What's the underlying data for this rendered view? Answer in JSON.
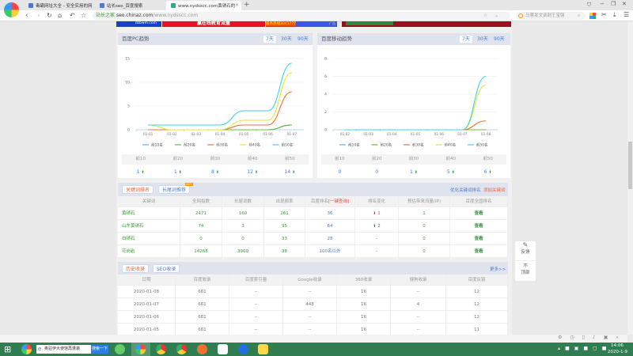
{
  "browser": {
    "tabs": [
      {
        "label": "毒霸网址大全 - 安全实用的网",
        "active": false
      },
      {
        "label": "站长seo_百度搜索",
        "active": false
      },
      {
        "label": "www.nydsscc.com黄锈石的",
        "active": true
      }
    ],
    "new_tab": "+",
    "url_badge": "站长之家",
    "url_host": "seo.chinaz.com",
    "url_path": "/www.nydsscc.com",
    "search_placeholder": "马蓉发文讽刺王宝强",
    "window_controls": [
      "−",
      "❐",
      "✕"
    ]
  },
  "ads": {
    "left": "dzbwm.com",
    "mid": "赢在线教育流量",
    "right": "服务热线3041777",
    "ad_label": "广告"
  },
  "pc_trend": {
    "title": "百度PC趋势",
    "ranges": [
      "7天",
      "30天",
      "90天"
    ],
    "selected": "7天",
    "chart_data": {
      "type": "line",
      "x": [
        "01-01",
        "01-02",
        "01-03",
        "01-04",
        "01-05",
        "01-06",
        "01-07"
      ],
      "ylim": [
        0,
        15
      ],
      "yticks": [
        0,
        5,
        10,
        15
      ],
      "series": [
        {
          "name": "前10名",
          "color": "#5ab1ef",
          "values": [
            0,
            0,
            0,
            0,
            0,
            0,
            1
          ]
        },
        {
          "name": "前20名",
          "color": "#67c23a",
          "values": [
            0,
            0,
            0,
            0,
            0,
            0,
            1
          ]
        },
        {
          "name": "前30名",
          "color": "#f56c3c",
          "values": [
            0,
            0,
            0,
            0,
            1,
            1,
            8
          ]
        },
        {
          "name": "前40名",
          "color": "#e8e526",
          "values": [
            1,
            0,
            0,
            0,
            2,
            2,
            12
          ]
        },
        {
          "name": "前50名",
          "color": "#3fd2f0",
          "values": [
            1,
            1,
            1,
            1,
            4,
            4,
            14
          ]
        }
      ]
    },
    "summary": [
      {
        "label": "前10",
        "value": "1",
        "trend": "up"
      },
      {
        "label": "前20",
        "value": "1",
        "trend": "up"
      },
      {
        "label": "前30",
        "value": "8",
        "trend": "up"
      },
      {
        "label": "前40",
        "value": "12",
        "trend": "up"
      },
      {
        "label": "前50",
        "value": "14",
        "trend": "up"
      }
    ]
  },
  "mobile_trend": {
    "title": "百度移动趋势",
    "ranges": [
      "7天",
      "30天",
      "90天"
    ],
    "selected": "7天",
    "chart_data": {
      "type": "line",
      "x": [
        "01-02",
        "01-03",
        "01-04",
        "01-05",
        "01-06",
        "01-07",
        "01-08"
      ],
      "ylim": [
        0,
        8
      ],
      "yticks": [
        0,
        2,
        4,
        6,
        8
      ],
      "series": [
        {
          "name": "前10名",
          "color": "#5ab1ef",
          "values": [
            0,
            0,
            0,
            0,
            0,
            0,
            0
          ]
        },
        {
          "name": "前20名",
          "color": "#67c23a",
          "values": [
            0,
            0,
            0,
            0,
            0,
            0,
            0
          ]
        },
        {
          "name": "前30名",
          "color": "#f56c3c",
          "values": [
            0,
            0,
            0,
            0,
            0,
            0,
            1
          ]
        },
        {
          "name": "前40名",
          "color": "#e8e526",
          "values": [
            0,
            0,
            0,
            0,
            0,
            0,
            5
          ]
        },
        {
          "name": "前50名",
          "color": "#3fd2f0",
          "values": [
            0,
            0,
            0,
            0,
            0,
            0,
            6
          ]
        }
      ]
    },
    "summary": [
      {
        "label": "前10",
        "value": "0",
        "trend": ""
      },
      {
        "label": "前20",
        "value": "0",
        "trend": ""
      },
      {
        "label": "前30",
        "value": "1",
        "trend": "up"
      },
      {
        "label": "前40",
        "value": "5",
        "trend": "up"
      },
      {
        "label": "前50",
        "value": "6",
        "trend": "up"
      }
    ]
  },
  "keywords": {
    "tabs": [
      "关键词排名",
      "长尾词推荐"
    ],
    "hot_badge": "HOT",
    "links": [
      "优化关键词排名",
      "添加关键词"
    ],
    "headers": [
      "关键词",
      "全网指数",
      "长尾词数",
      "出现频率",
      "百度排名",
      "排名变化",
      "预估带来流量(IP)",
      "百度全国排名"
    ],
    "header_link": "[一键查询]",
    "rows": [
      {
        "keyword": "黄锈石",
        "index": "2471",
        "longtail": "160",
        "freq": "261",
        "rank": "36",
        "change": "1",
        "dir": "down",
        "traffic": "1",
        "national": "查看"
      },
      {
        "keyword": "山东黄锈石",
        "index": "74",
        "longtail": "3",
        "freq": "95",
        "rank": "64",
        "change": "2",
        "dir": "up",
        "traffic": "0",
        "national": "查看"
      },
      {
        "keyword": "白锈石",
        "index": "0",
        "longtail": "0",
        "freq": "33",
        "rank": "28",
        "change": "-",
        "dir": "",
        "traffic": "0",
        "national": "查看"
      },
      {
        "keyword": "花岗岩",
        "index": "14268",
        "longtail": "3900",
        "freq": "38",
        "rank": "100名以外",
        "change": "-",
        "dir": "",
        "traffic": "0",
        "national": "查看"
      }
    ]
  },
  "history": {
    "tabs": [
      "历史收录",
      "SEO收录"
    ],
    "more": "更多>>",
    "headers": [
      "日期",
      "百度收录",
      "百度索引量",
      "Google收录",
      "360收录",
      "搜狗收录",
      "百度反链"
    ],
    "rows": [
      [
        "2020-01-08",
        "661",
        "--",
        "--",
        "16",
        "--",
        "12"
      ],
      [
        "2020-01-07",
        "661",
        "--",
        "448",
        "16",
        "4",
        "12"
      ],
      [
        "2020-01-06",
        "661",
        "--",
        "--",
        "16",
        "--",
        "12"
      ],
      [
        "2020-01-05",
        "661",
        "--",
        "--",
        "16",
        "--",
        "11"
      ]
    ]
  },
  "side": {
    "feedback": "反馈",
    "top_icon": "不",
    "top": "顶部"
  },
  "taskbar": {
    "search_text": "奥驻伊大使馆再遭袭",
    "search_button": "搜索一下",
    "time": "14:06",
    "date": "2020-1-9"
  }
}
